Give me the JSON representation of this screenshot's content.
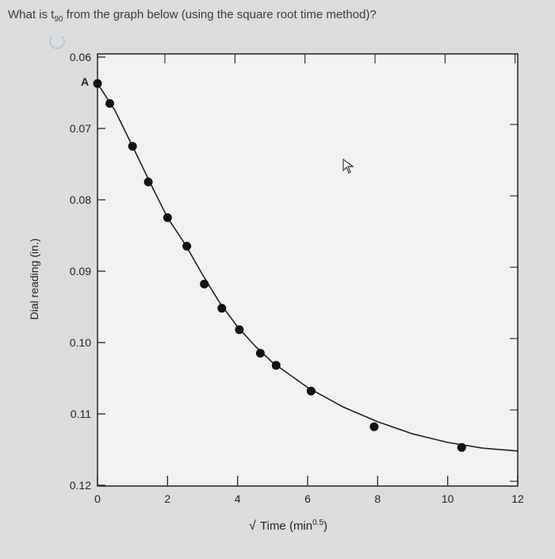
{
  "question": {
    "prefix": "What is t",
    "subscript": "90",
    "suffix": " from the graph below (using the square root time method)?"
  },
  "chart_data": {
    "type": "scatter",
    "ylabel": "Dial reading (in.)",
    "xlabel_main": "Time (min",
    "xlabel_exp": "0.5",
    "xlabel_close": ")",
    "xlim": [
      0,
      12
    ],
    "ylim": [
      0.06,
      0.12
    ],
    "y_inverted": true,
    "x_ticks": [
      "0",
      "2",
      "4",
      "6",
      "8",
      "10",
      "12"
    ],
    "y_ticks": [
      "0.06",
      "0.07",
      "0.08",
      "0.09",
      "0.10",
      "0.11",
      "0.12"
    ],
    "annotation": "A",
    "grid": false,
    "points": [
      {
        "x": 0.0,
        "y": 0.0637
      },
      {
        "x": 0.35,
        "y": 0.0665
      },
      {
        "x": 1.0,
        "y": 0.0725
      },
      {
        "x": 1.45,
        "y": 0.0775
      },
      {
        "x": 2.0,
        "y": 0.0825
      },
      {
        "x": 2.55,
        "y": 0.0865
      },
      {
        "x": 3.05,
        "y": 0.0918
      },
      {
        "x": 3.55,
        "y": 0.0952
      },
      {
        "x": 4.05,
        "y": 0.0982
      },
      {
        "x": 4.65,
        "y": 0.1015
      },
      {
        "x": 5.1,
        "y": 0.1032
      },
      {
        "x": 6.1,
        "y": 0.1068
      },
      {
        "x": 7.9,
        "y": 0.1118
      },
      {
        "x": 10.4,
        "y": 0.1147
      }
    ],
    "curve": [
      [
        0.0,
        0.0637
      ],
      [
        0.5,
        0.0675
      ],
      [
        1.0,
        0.0725
      ],
      [
        1.5,
        0.0776
      ],
      [
        2.0,
        0.0825
      ],
      [
        2.5,
        0.0862
      ],
      [
        3.0,
        0.0905
      ],
      [
        3.5,
        0.0945
      ],
      [
        4.0,
        0.0978
      ],
      [
        4.5,
        0.1005
      ],
      [
        5.0,
        0.1028
      ],
      [
        6.0,
        0.1063
      ],
      [
        7.0,
        0.109
      ],
      [
        8.0,
        0.1111
      ],
      [
        9.0,
        0.1128
      ],
      [
        10.0,
        0.114
      ],
      [
        11.0,
        0.1148
      ],
      [
        12.0,
        0.1152
      ]
    ]
  }
}
